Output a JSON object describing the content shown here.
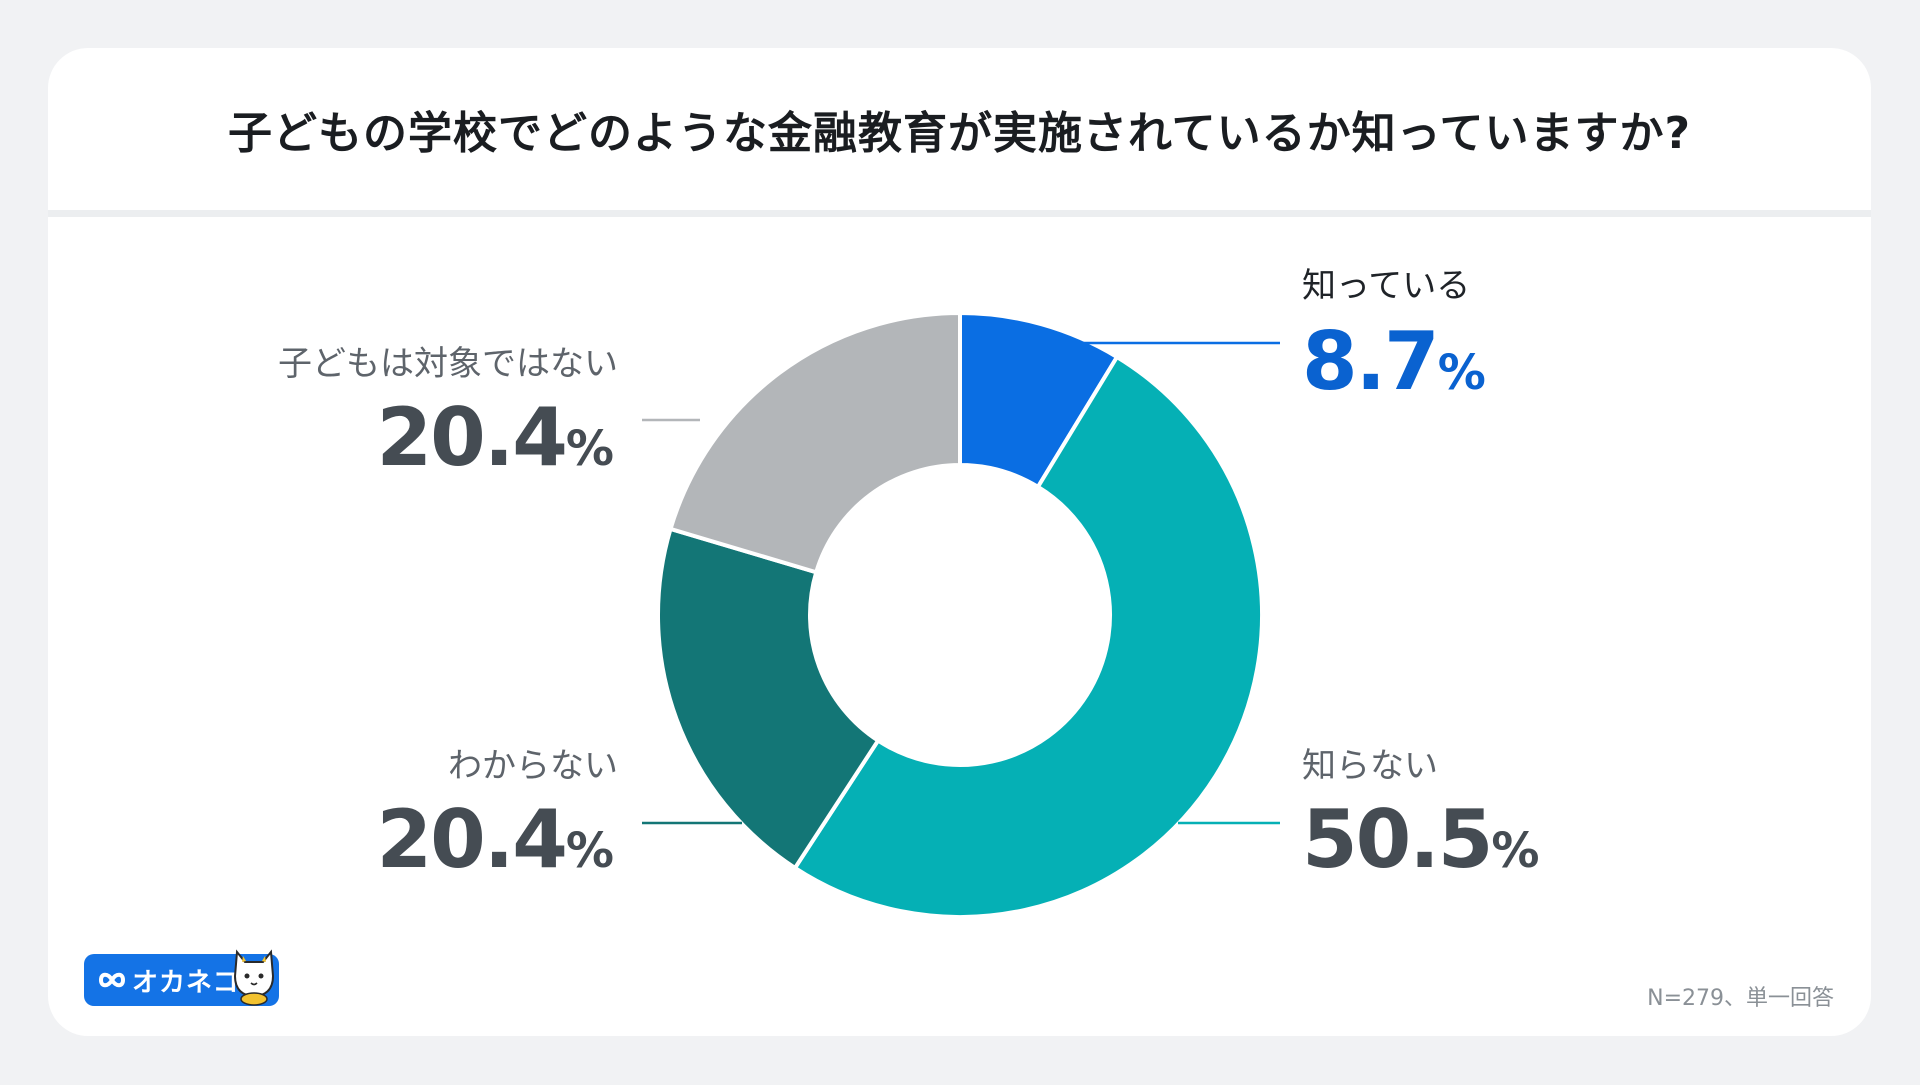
{
  "title": "子どもの学校でどのような金融教育が実施されているか知っていますか?",
  "chart_data": {
    "type": "pie",
    "donut": true,
    "slices": [
      {
        "label": "知っている",
        "value": 8.7,
        "value_text": "8.7",
        "color": "#0a6ee3",
        "label_color": "#0a62d0"
      },
      {
        "label": "知らない",
        "value": 50.5,
        "value_text": "50.5",
        "color": "#05b0b5",
        "label_color": "#454c53"
      },
      {
        "label": "わからない",
        "value": 20.4,
        "value_text": "20.4",
        "color": "#137676",
        "label_color": "#454c53"
      },
      {
        "label": "子どもは対象ではない",
        "value": 20.4,
        "value_text": "20.4",
        "color": "#b3b6b9",
        "label_color": "#454c53"
      }
    ],
    "unit": "%"
  },
  "note": "N=279、単一回答",
  "logo_text": "オカネコ"
}
